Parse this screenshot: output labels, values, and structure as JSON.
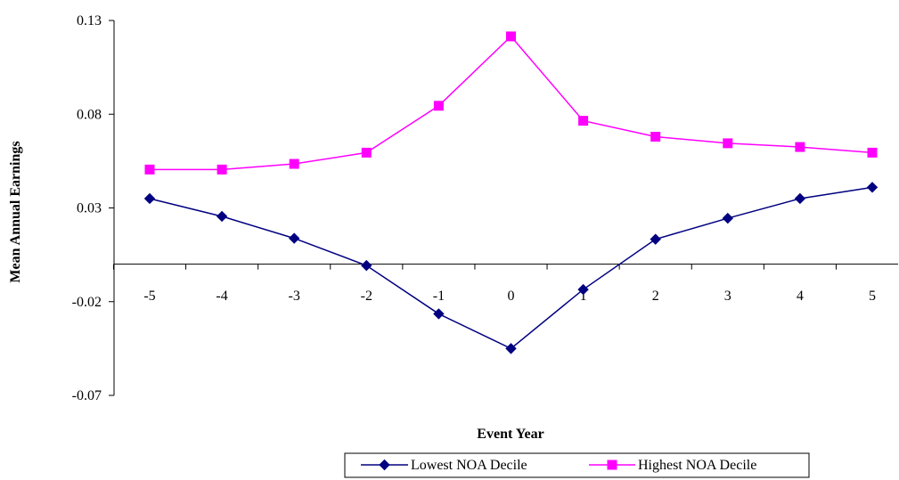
{
  "chart_data": {
    "type": "line",
    "title": "",
    "xlabel": "Event Year",
    "ylabel": "Mean Annual Earnings",
    "categories": [
      "-5",
      "-4",
      "-3",
      "-2",
      "-1",
      "0",
      "1",
      "2",
      "3",
      "4",
      "5"
    ],
    "ylim": [
      -0.07,
      0.13
    ],
    "yticks": [
      "0.13",
      "0.08",
      "0.03",
      "-0.02",
      "-0.07"
    ],
    "ytick_values": [
      0.13,
      0.08,
      0.03,
      -0.02,
      -0.07
    ],
    "grid": false,
    "legend_position": "bottom",
    "series": [
      {
        "name": "Lowest NOA Decile",
        "color": "#000080",
        "marker": "diamond",
        "values": [
          0.035,
          0.0255,
          0.0138,
          -0.0007,
          -0.0265,
          -0.045,
          -0.0135,
          0.0133,
          0.0245,
          0.035,
          0.041
        ]
      },
      {
        "name": "Highest NOA Decile",
        "color": "#FF00FF",
        "marker": "square",
        "values": [
          0.0505,
          0.0505,
          0.0535,
          0.0595,
          0.0845,
          0.1215,
          0.0765,
          0.068,
          0.0645,
          0.0625,
          0.0595
        ]
      }
    ]
  }
}
